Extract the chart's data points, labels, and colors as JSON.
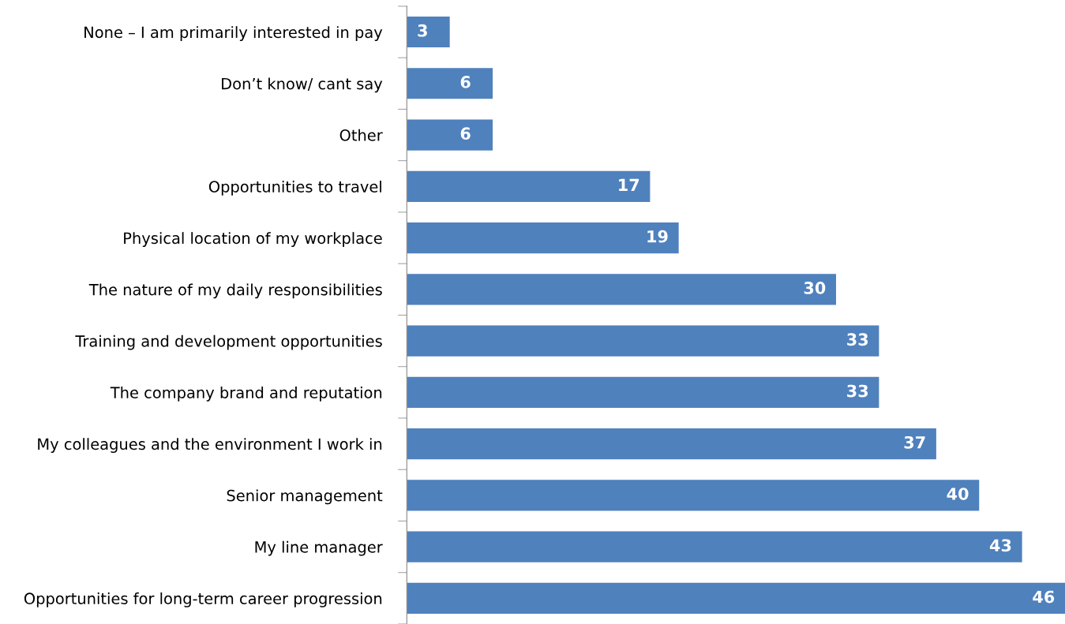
{
  "chart_data": {
    "type": "bar",
    "orientation": "horizontal",
    "categories": [
      "None – I am primarily interested in pay",
      "Don’t know/ cant say",
      "Other",
      "Opportunities to travel",
      "Physical location of my workplace",
      "The nature of my daily responsibilities",
      "Training and development opportunities",
      "The company brand and reputation",
      "My colleagues and the environment I work in",
      "Senior management",
      "My line manager",
      "Opportunities for long-term career progression"
    ],
    "values": [
      3,
      6,
      6,
      17,
      19,
      30,
      33,
      33,
      37,
      40,
      43,
      46
    ],
    "color": "#4f81bd",
    "xlim": [
      0,
      46
    ],
    "tick_labels": "y",
    "data_labels": true,
    "grid": false,
    "legend": false
  }
}
